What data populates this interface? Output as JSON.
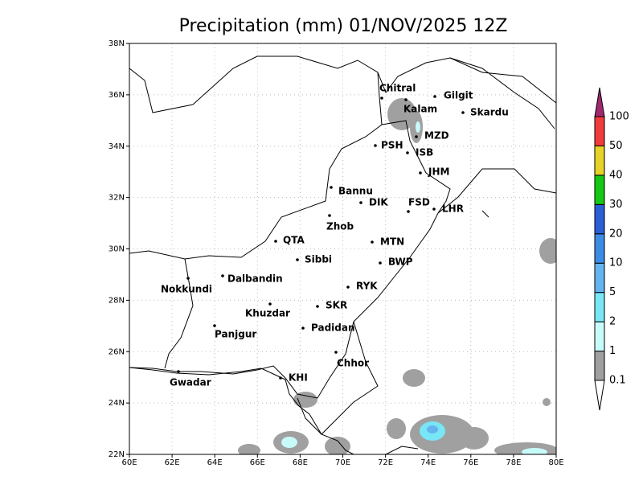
{
  "title": "Precipitation (mm) 01/NOV/2025 12Z",
  "map": {
    "lon_labels": [
      "60E",
      "62E",
      "64E",
      "66E",
      "68E",
      "70E",
      "72E",
      "74E",
      "76E",
      "78E",
      "80E"
    ],
    "lat_labels": [
      "22N",
      "24N",
      "26N",
      "28N",
      "30N",
      "32N",
      "34N",
      "36N",
      "38N"
    ],
    "cities": [
      "Chitral",
      "Gilgit",
      "Kalam",
      "Skardu",
      "MZD",
      "PSH",
      "ISB",
      "JHM",
      "Bannu",
      "DIK",
      "FSD",
      "LHR",
      "Zhob",
      "QTA",
      "MTN",
      "Sibbi",
      "BWP",
      "Dalbandin",
      "Nokkundi",
      "RYK",
      "Khuzdar",
      "SKR",
      "Panjgur",
      "Padidan",
      "Chhor",
      "KHI",
      "Gwadar"
    ]
  },
  "colorbar": {
    "labels": [
      "0.1",
      "1",
      "2",
      "5",
      "10",
      "20",
      "30",
      "40",
      "50",
      "100"
    ],
    "colors": [
      "#ffffff",
      "#a0a0a0",
      "#c8fafa",
      "#78e6f5",
      "#64b4f0",
      "#3c8ce6",
      "#2a5fd6",
      "#16c816",
      "#e6d228",
      "#f03c3c",
      "#a0286e"
    ]
  }
}
